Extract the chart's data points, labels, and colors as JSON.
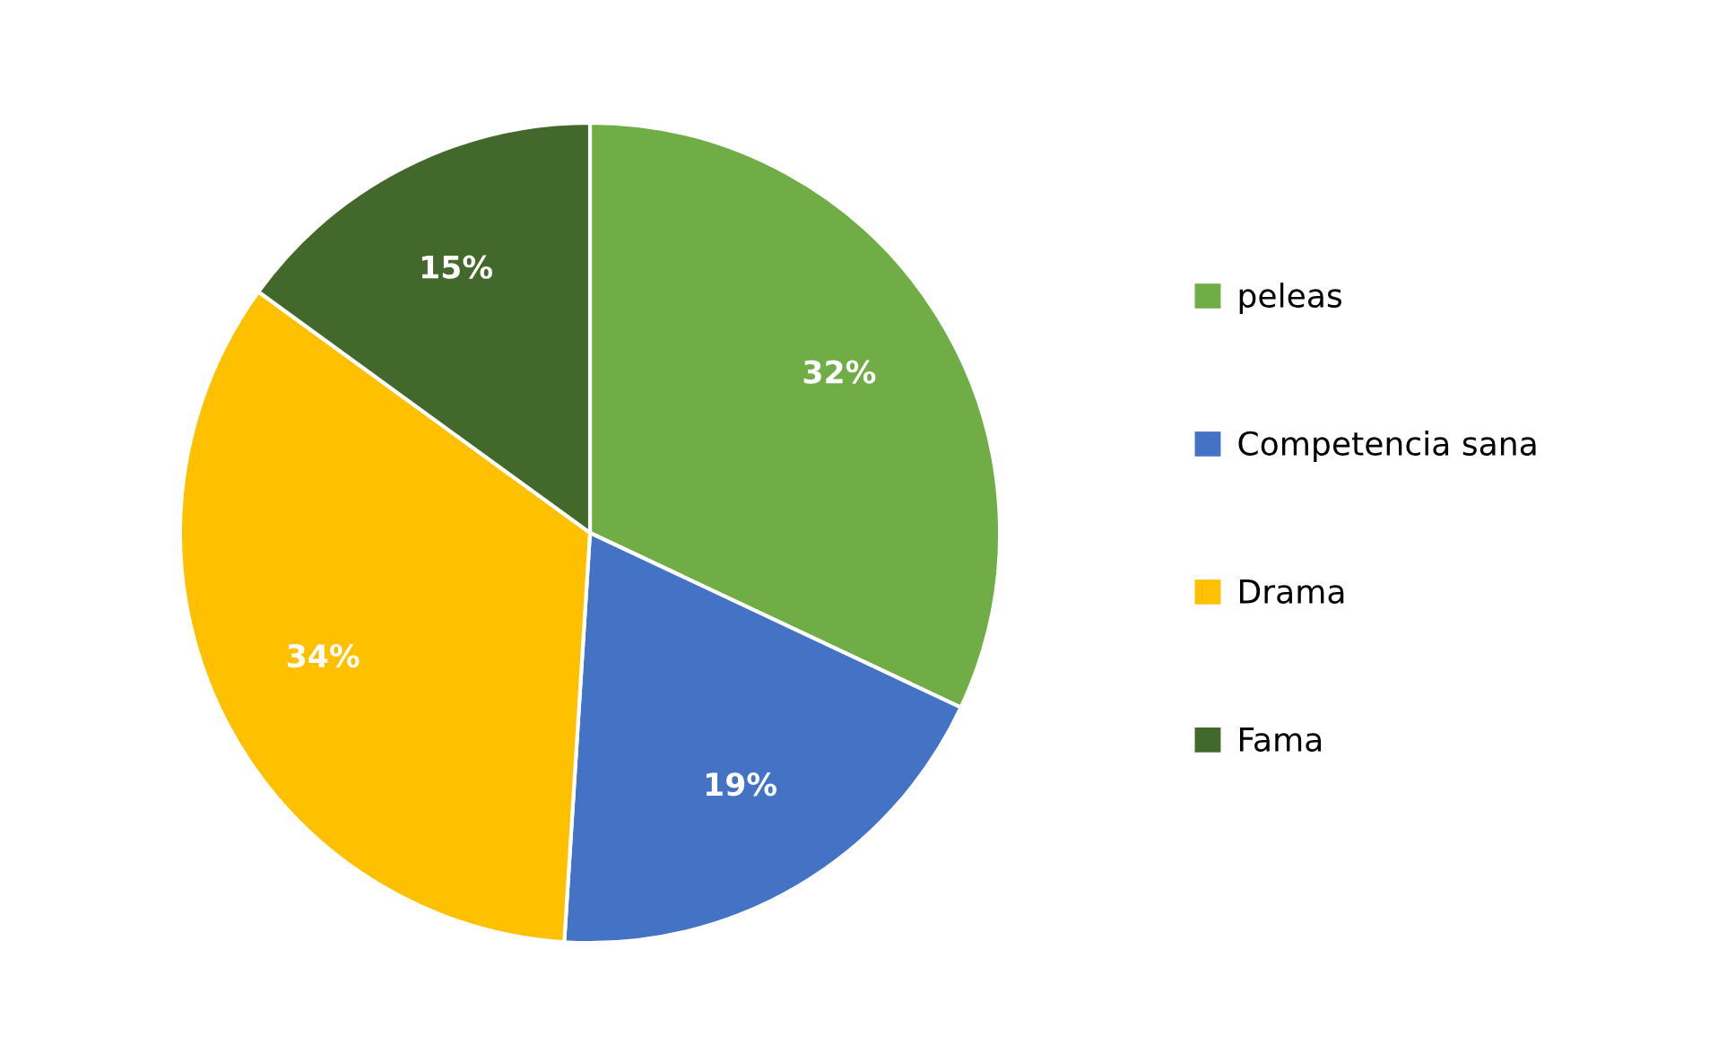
{
  "chart_data": {
    "type": "pie",
    "categories": [
      "peleas",
      "Competencia sana",
      "Drama",
      "Fama"
    ],
    "values": [
      32,
      19,
      34,
      15
    ],
    "colors": [
      "#70ad47",
      "#4472c4",
      "#ffc000",
      "#43682b"
    ],
    "value_labels": [
      "32%",
      "19%",
      "34%",
      "15%"
    ],
    "legend": "right"
  }
}
